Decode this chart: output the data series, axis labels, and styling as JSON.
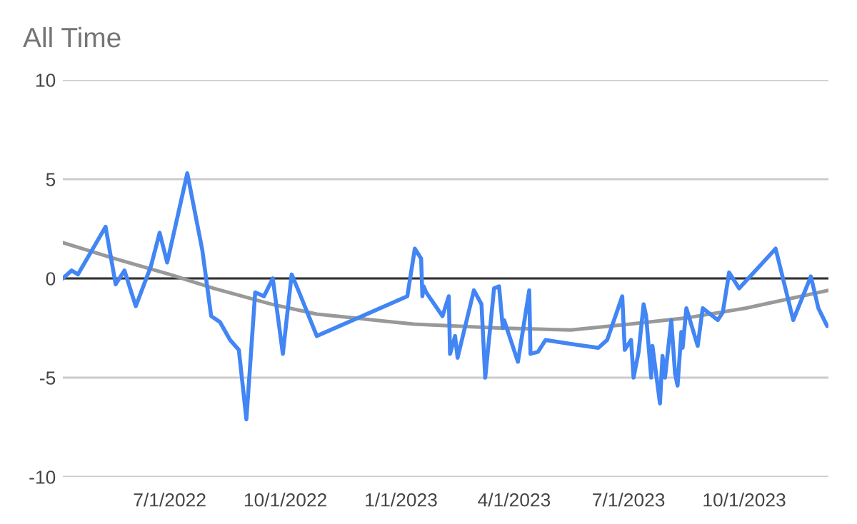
{
  "chart_data": {
    "type": "line",
    "title": "All Time",
    "series": [
      {
        "color": "#4285f4",
        "x": [
          "2022-04-07",
          "2022-04-14",
          "2022-04-19",
          "2022-05-11",
          "2022-05-19",
          "2022-05-26",
          "2022-06-04",
          "2022-06-16",
          "2022-06-23",
          "2022-06-29",
          "2022-07-15",
          "2022-07-27",
          "2022-08-03",
          "2022-08-10",
          "2022-08-18",
          "2022-08-25",
          "2022-08-31",
          "2022-09-07",
          "2022-09-14",
          "2022-09-21",
          "2022-09-29",
          "2022-10-06",
          "2022-10-12",
          "2022-10-26",
          "2023-01-06",
          "2023-01-12",
          "2023-01-17",
          "2023-01-18",
          "2023-01-19",
          "2023-01-21",
          "2023-02-03",
          "2023-02-08",
          "2023-02-09",
          "2023-02-13",
          "2023-02-15",
          "2023-02-28",
          "2023-03-06",
          "2023-03-09",
          "2023-03-16",
          "2023-03-20",
          "2023-03-23",
          "2023-03-24",
          "2023-04-04",
          "2023-04-13",
          "2023-04-14",
          "2023-04-20",
          "2023-04-26",
          "2023-05-16",
          "2023-06-07",
          "2023-06-14",
          "2023-06-26",
          "2023-06-28",
          "2023-07-03",
          "2023-07-05",
          "2023-07-09",
          "2023-07-13",
          "2023-07-15",
          "2023-07-19",
          "2023-07-20",
          "2023-07-26",
          "2023-07-28",
          "2023-07-30",
          "2023-08-04",
          "2023-08-07",
          "2023-08-09",
          "2023-08-12",
          "2023-08-13",
          "2023-08-16",
          "2023-08-25",
          "2023-08-29",
          "2023-09-10",
          "2023-09-14",
          "2023-09-19",
          "2023-09-27",
          "2023-10-26",
          "2023-11-09",
          "2023-11-23",
          "2023-11-29",
          "2023-12-06"
        ],
        "values": [
          0,
          0.4,
          0.2,
          2.6,
          -0.3,
          0.4,
          -1.4,
          0.6,
          2.3,
          0.8,
          5.3,
          1.4,
          -1.9,
          -2.2,
          -3.1,
          -3.6,
          -7.1,
          -0.7,
          -0.9,
          0,
          -3.8,
          0.2,
          -0.7,
          -2.9,
          -0.9,
          1.5,
          1.0,
          -0.9,
          -0.4,
          -0.7,
          -1.9,
          -0.9,
          -3.8,
          -2.9,
          -4.0,
          -0.6,
          -1.3,
          -5.0,
          -0.5,
          -0.4,
          -2.5,
          -2.1,
          -4.2,
          -0.6,
          -3.8,
          -3.7,
          -3.1,
          -3.3,
          -3.5,
          -3.1,
          -0.9,
          -3.6,
          -3.1,
          -5.0,
          -3.7,
          -1.3,
          -1.9,
          -5.0,
          -3.4,
          -6.3,
          -3.9,
          -5.0,
          -2.1,
          -4.8,
          -5.4,
          -2.7,
          -3.5,
          -1.5,
          -3.4,
          -1.5,
          -2.1,
          -1.7,
          0.3,
          -0.5,
          1.5,
          -2.1,
          0.1,
          -1.5,
          -2.4
        ]
      },
      {
        "type": "line",
        "color": "#999999",
        "x": [
          "2022-04-07",
          "2022-05-18",
          "2022-07-01",
          "2022-08-05",
          "2022-09-20",
          "2022-10-26",
          "2023-01-11",
          "2023-03-20",
          "2023-05-16",
          "2023-07-02",
          "2023-08-15",
          "2023-10-02",
          "2023-12-07"
        ],
        "values": [
          1.8,
          1.0,
          0.2,
          -0.5,
          -1.3,
          -1.8,
          -2.3,
          -2.5,
          -2.6,
          -2.3,
          -2.0,
          -1.5,
          -0.6
        ]
      }
    ],
    "xlim": [
      "2022-04-07",
      "2023-12-07"
    ],
    "xticks": [
      {
        "value": "2022-07-01",
        "label": "7/1/2022"
      },
      {
        "value": "2022-10-01",
        "label": "10/1/2022"
      },
      {
        "value": "2023-01-01",
        "label": "1/1/2023"
      },
      {
        "value": "2023-04-01",
        "label": "4/1/2023"
      },
      {
        "value": "2023-07-01",
        "label": "7/1/2023"
      },
      {
        "value": "2023-10-01",
        "label": "10/1/2023"
      }
    ],
    "ylim": [
      -10,
      10
    ],
    "yticks": [
      -10,
      -5,
      0,
      5,
      10
    ],
    "ref_lines": [
      {
        "axis": "y",
        "value": 0,
        "color": "#333333"
      }
    ],
    "grid": "y",
    "marker": "none",
    "line_style": "solid"
  }
}
